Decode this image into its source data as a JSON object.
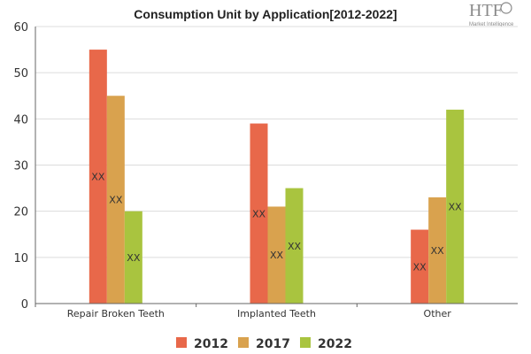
{
  "logo": {
    "text": "HTF",
    "sub": "Market Intelligence"
  },
  "chart_data": {
    "type": "bar",
    "title": "Consumption Unit by  Application[2012-2022]",
    "xlabel": "",
    "ylabel": "",
    "categories": [
      "Repair Broken Teeth",
      "Implanted Teeth",
      "Other"
    ],
    "ylim": [
      0,
      60
    ],
    "yticks": [
      0,
      10,
      20,
      30,
      40,
      50,
      60
    ],
    "grid": true,
    "legend_position": "bottom",
    "data_label_text": "XX",
    "series": [
      {
        "name": "2012",
        "color": "#e8684a",
        "values": [
          55,
          39,
          16
        ]
      },
      {
        "name": "2017",
        "color": "#d9a24e",
        "values": [
          45,
          21,
          23
        ]
      },
      {
        "name": "2022",
        "color": "#a9c43f",
        "values": [
          20,
          25,
          42
        ]
      }
    ]
  }
}
